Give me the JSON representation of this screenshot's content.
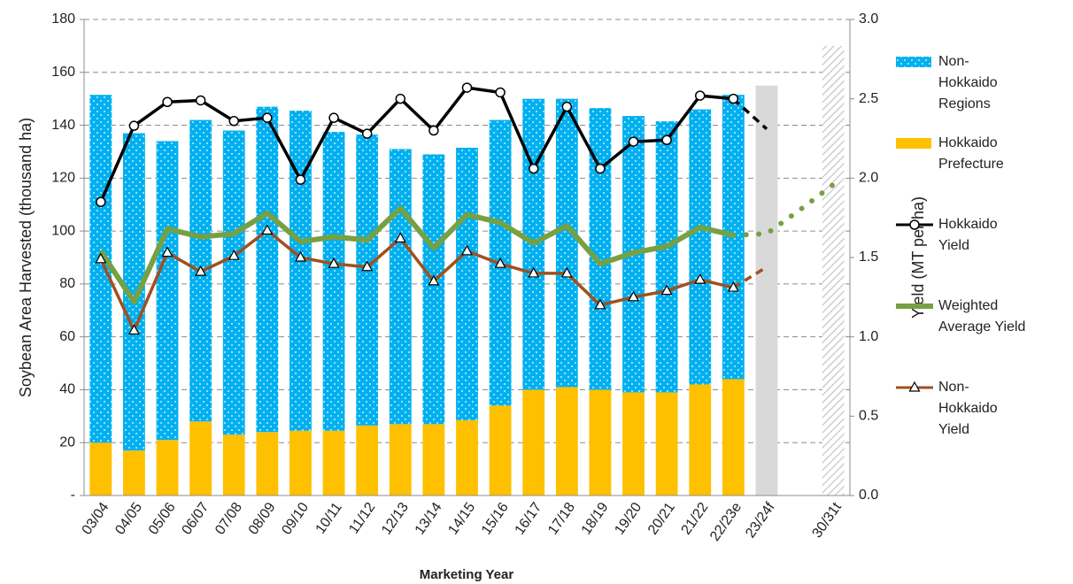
{
  "chart_data": {
    "type": "combo",
    "x_label": "Marketing Year",
    "y_label": "Soybean  Area Harvested  (thousand ha)",
    "y2_label": "Yield (MT per ha)",
    "categories": [
      "03/04",
      "04/05",
      "05/06",
      "06/07",
      "07/08",
      "08/09",
      "09/10",
      "10/11",
      "11/12",
      "12/13",
      "13/14",
      "14/15",
      "15/16",
      "16/17",
      "17/18",
      "18/19",
      "19/20",
      "20/21",
      "21/22",
      "22/23e",
      "23/24f",
      null,
      "30/31t"
    ],
    "ylim": [
      0,
      180
    ],
    "yticks": [
      {
        "value": 0,
        "label": "-"
      },
      20,
      40,
      60,
      80,
      100,
      120,
      140,
      160,
      180
    ],
    "y2lim": [
      0,
      3
    ],
    "y2ticks": [
      {
        "value": 0,
        "label": "0.0"
      },
      0.5,
      {
        "value": 1,
        "label": "1.0"
      },
      1.5,
      {
        "value": 2,
        "label": "2.0"
      },
      2.5,
      {
        "value": 3,
        "label": "3.0"
      }
    ],
    "grid": true,
    "legend": "right",
    "forecast_bars": {
      "values": [
        null,
        null,
        null,
        null,
        null,
        null,
        null,
        null,
        null,
        null,
        null,
        null,
        null,
        null,
        null,
        null,
        null,
        null,
        null,
        null,
        155,
        null,
        170
      ],
      "fills": [
        null,
        null,
        null,
        null,
        null,
        null,
        null,
        null,
        null,
        null,
        null,
        null,
        null,
        null,
        null,
        null,
        null,
        null,
        null,
        null,
        "#d9d9d9",
        null,
        "hatch"
      ]
    },
    "series": [
      {
        "name": "Non-Hokkaido Regions",
        "type": "bar",
        "color": "#00b0f0",
        "pattern": "dots",
        "values": [
          131.5,
          120,
          113,
          114,
          115,
          123,
          121,
          113,
          110,
          104,
          102,
          103,
          108,
          110,
          109,
          106.5,
          104.5,
          102.5,
          104,
          107.5,
          null,
          null,
          null
        ]
      },
      {
        "name": "Hokkaido Prefecture",
        "type": "bar",
        "color": "#ffc000",
        "values": [
          20,
          17,
          21,
          28,
          23,
          24,
          24.5,
          24.5,
          26.5,
          27,
          27,
          28.5,
          34,
          40,
          41,
          40,
          39,
          39,
          42,
          44,
          null,
          null,
          null
        ]
      },
      {
        "name": "Hokkaido Yield",
        "type": "line",
        "axis": "y2",
        "color": "#000000",
        "marker": "circle",
        "forecast_style": "dash",
        "forecast_from": 19,
        "values": [
          1.85,
          2.33,
          2.48,
          2.49,
          2.36,
          2.38,
          1.99,
          2.38,
          2.28,
          2.5,
          2.3,
          2.57,
          2.54,
          2.06,
          2.45,
          2.06,
          2.23,
          2.24,
          2.52,
          2.5,
          2.31,
          null,
          null
        ]
      },
      {
        "name": "Weighted Average Yield",
        "type": "line",
        "axis": "y2",
        "color": "#77a043",
        "width": 6,
        "forecast_style": "dot",
        "forecast_from": 19,
        "values": [
          1.54,
          1.22,
          1.68,
          1.63,
          1.65,
          1.78,
          1.6,
          1.63,
          1.61,
          1.81,
          1.56,
          1.77,
          1.72,
          1.59,
          1.7,
          1.46,
          1.53,
          1.57,
          1.69,
          1.64,
          1.65,
          1.8,
          1.96
        ]
      },
      {
        "name": "Non-Hokkaido Yield",
        "type": "line",
        "axis": "y2",
        "color": "#a0501e",
        "marker": "triangle",
        "forecast_style": "dash",
        "forecast_from": 19,
        "values": [
          1.49,
          1.04,
          1.53,
          1.41,
          1.51,
          1.67,
          1.5,
          1.46,
          1.44,
          1.62,
          1.35,
          1.54,
          1.46,
          1.4,
          1.4,
          1.2,
          1.25,
          1.29,
          1.36,
          1.31,
          1.44,
          null,
          null
        ]
      }
    ]
  }
}
